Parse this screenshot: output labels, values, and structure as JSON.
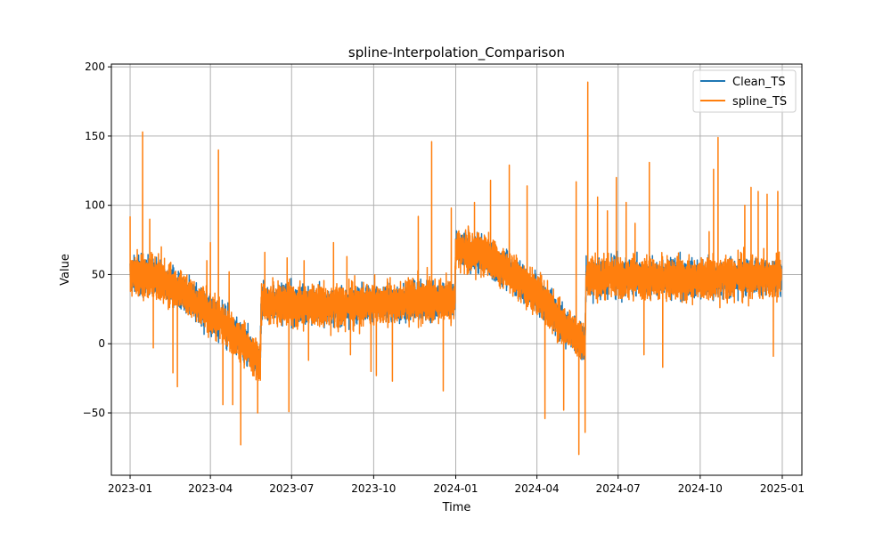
{
  "chart_data": {
    "type": "line",
    "title": "spline-Interpolation_Comparison",
    "xlabel": "Time",
    "ylabel": "Value",
    "x_range": [
      "2022-12-11",
      "2025-01-23"
    ],
    "ylim": [
      -95,
      202
    ],
    "grid": true,
    "legend_position": "top-right",
    "x_tick_labels": [
      "2023-01",
      "2023-04",
      "2023-07",
      "2023-10",
      "2024-01",
      "2024-04",
      "2024-07",
      "2024-10",
      "2025-01"
    ],
    "x_tick_dates": [
      "2023-01-01",
      "2023-04-01",
      "2023-07-01",
      "2023-10-01",
      "2024-01-01",
      "2024-04-01",
      "2024-07-01",
      "2024-10-01",
      "2025-01-01"
    ],
    "y_ticks": [
      -50,
      0,
      50,
      100,
      150,
      200
    ],
    "series": [
      {
        "name": "Clean_TS",
        "color": "#1f77b4",
        "dates": [
          "2023-01-01",
          "2023-02-01",
          "2023-03-01",
          "2023-04-01",
          "2023-05-01",
          "2023-05-27",
          "2023-05-28",
          "2023-07-01",
          "2023-08-01",
          "2023-09-01",
          "2023-10-01",
          "2023-11-01",
          "2023-12-01",
          "2023-12-31",
          "2024-01-01",
          "2024-02-01",
          "2024-03-01",
          "2024-04-01",
          "2024-05-01",
          "2024-05-25",
          "2024-05-26",
          "2024-07-01",
          "2024-08-01",
          "2024-09-01",
          "2024-10-01",
          "2024-11-01",
          "2024-12-01",
          "2024-12-31"
        ],
        "values": [
          50,
          47,
          38,
          22,
          5,
          -13,
          30,
          28,
          28,
          27,
          29,
          30,
          31,
          32,
          70,
          64,
          52,
          36,
          14,
          0,
          48,
          48,
          48,
          47,
          47,
          48,
          48,
          48
        ],
        "noise": 6
      },
      {
        "name": "spline_TS",
        "color": "#ff7f0e",
        "note_values_follow_clean": true,
        "spikes": [
          {
            "date": "2023-01-01",
            "value": 92
          },
          {
            "date": "2023-01-09",
            "value": 68
          },
          {
            "date": "2023-01-15",
            "value": 153
          },
          {
            "date": "2023-01-23",
            "value": 90
          },
          {
            "date": "2023-01-27",
            "value": -3
          },
          {
            "date": "2023-02-05",
            "value": 70
          },
          {
            "date": "2023-02-18",
            "value": -21
          },
          {
            "date": "2023-02-23",
            "value": -31
          },
          {
            "date": "2023-03-28",
            "value": 60
          },
          {
            "date": "2023-04-01",
            "value": 73
          },
          {
            "date": "2023-04-10",
            "value": 140
          },
          {
            "date": "2023-04-15",
            "value": -44
          },
          {
            "date": "2023-04-22",
            "value": 52
          },
          {
            "date": "2023-04-26",
            "value": -44
          },
          {
            "date": "2023-05-05",
            "value": -73
          },
          {
            "date": "2023-05-24",
            "value": -50
          },
          {
            "date": "2023-06-01",
            "value": 66
          },
          {
            "date": "2023-06-26",
            "value": 62
          },
          {
            "date": "2023-06-28",
            "value": -49
          },
          {
            "date": "2023-07-15",
            "value": 60
          },
          {
            "date": "2023-07-20",
            "value": -12
          },
          {
            "date": "2023-08-17",
            "value": 73
          },
          {
            "date": "2023-09-01",
            "value": 63
          },
          {
            "date": "2023-09-05",
            "value": -8
          },
          {
            "date": "2023-09-28",
            "value": -20
          },
          {
            "date": "2023-10-04",
            "value": -23
          },
          {
            "date": "2023-10-22",
            "value": -27
          },
          {
            "date": "2023-11-20",
            "value": 92
          },
          {
            "date": "2023-11-30",
            "value": 55
          },
          {
            "date": "2023-12-05",
            "value": 146
          },
          {
            "date": "2023-12-18",
            "value": -34
          },
          {
            "date": "2023-12-27",
            "value": 98
          },
          {
            "date": "2024-01-15",
            "value": 85
          },
          {
            "date": "2024-01-22",
            "value": 102
          },
          {
            "date": "2024-02-09",
            "value": 118
          },
          {
            "date": "2024-03-01",
            "value": 129
          },
          {
            "date": "2024-03-21",
            "value": 114
          },
          {
            "date": "2024-04-10",
            "value": -54
          },
          {
            "date": "2024-05-01",
            "value": -48
          },
          {
            "date": "2024-05-15",
            "value": 117
          },
          {
            "date": "2024-05-18",
            "value": -80
          },
          {
            "date": "2024-05-25",
            "value": -64
          },
          {
            "date": "2024-05-28",
            "value": 189
          },
          {
            "date": "2024-06-08",
            "value": 106
          },
          {
            "date": "2024-06-19",
            "value": 96
          },
          {
            "date": "2024-06-29",
            "value": 120
          },
          {
            "date": "2024-07-10",
            "value": 102
          },
          {
            "date": "2024-07-20",
            "value": 87
          },
          {
            "date": "2024-07-30",
            "value": -8
          },
          {
            "date": "2024-08-05",
            "value": 131
          },
          {
            "date": "2024-08-20",
            "value": -17
          },
          {
            "date": "2024-10-11",
            "value": 81
          },
          {
            "date": "2024-10-16",
            "value": 126
          },
          {
            "date": "2024-10-21",
            "value": 149
          },
          {
            "date": "2024-11-20",
            "value": 100
          },
          {
            "date": "2024-11-27",
            "value": 113
          },
          {
            "date": "2024-12-05",
            "value": 110
          },
          {
            "date": "2024-12-15",
            "value": 108
          },
          {
            "date": "2024-12-22",
            "value": -9
          },
          {
            "date": "2024-12-27",
            "value": 110
          }
        ]
      }
    ]
  }
}
